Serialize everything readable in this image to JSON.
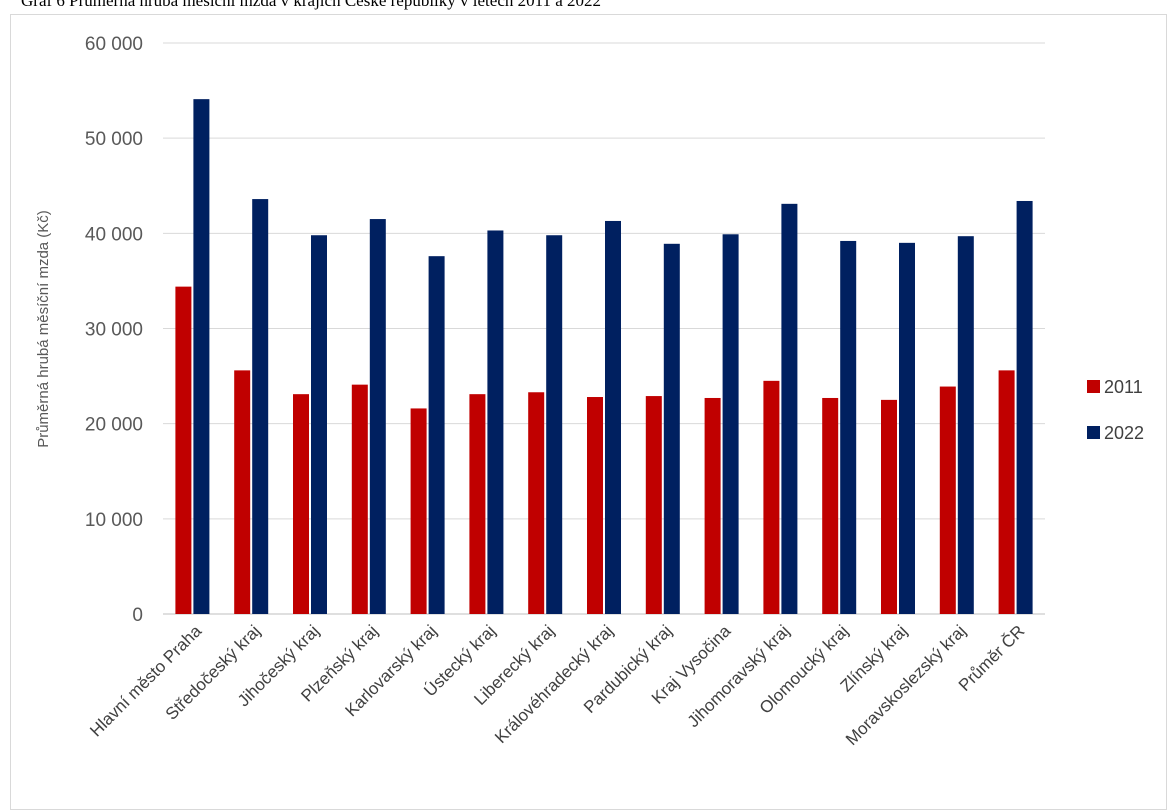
{
  "caption": "Graf 6 Průměrná hrubá měsíční mzda v krajích České republiky v letech 2011 a 2022",
  "colors": {
    "series_2011": "#c00000",
    "series_2022": "#002060",
    "grid": "#d9d9d9",
    "axis": "#bfbfbf"
  },
  "chart_data": {
    "type": "bar",
    "title": "Graf 6 Průměrná hrubá měsíční mzda v krajích České republiky v letech 2011 a 2022",
    "xlabel": "",
    "ylabel": "Průměrná hrubá měsíční mzda (Kč)",
    "ylim": [
      0,
      60000
    ],
    "yticks": [
      0,
      10000,
      20000,
      30000,
      40000,
      50000,
      60000
    ],
    "ytick_labels": [
      "0",
      "10 000",
      "20 000",
      "30 000",
      "40 000",
      "50 000",
      "60 000"
    ],
    "grid": true,
    "legend_position": "right",
    "categories": [
      "Hlavní město Praha",
      "Středočeský kraj",
      "Jihočeský kraj",
      "Plzeňský kraj",
      "Karlovarský kraj",
      "Ústecký kraj",
      "Liberecký kraj",
      "Královéhradecký kraj",
      "Pardubický kraj",
      "Kraj Vysočina",
      "Jihomoravský kraj",
      "Olomoucký kraj",
      "Zlínský kraj",
      "Moravskoslezský kraj",
      "Průměr ČR"
    ],
    "series": [
      {
        "name": "2011",
        "values": [
          34400,
          25600,
          23100,
          24100,
          21600,
          23100,
          23300,
          22800,
          22900,
          22700,
          24500,
          22700,
          22500,
          23900,
          25600
        ]
      },
      {
        "name": "2022",
        "values": [
          54100,
          43600,
          39800,
          41500,
          37600,
          40300,
          39800,
          41300,
          38900,
          39900,
          43100,
          39200,
          39000,
          39700,
          43400
        ]
      }
    ]
  }
}
